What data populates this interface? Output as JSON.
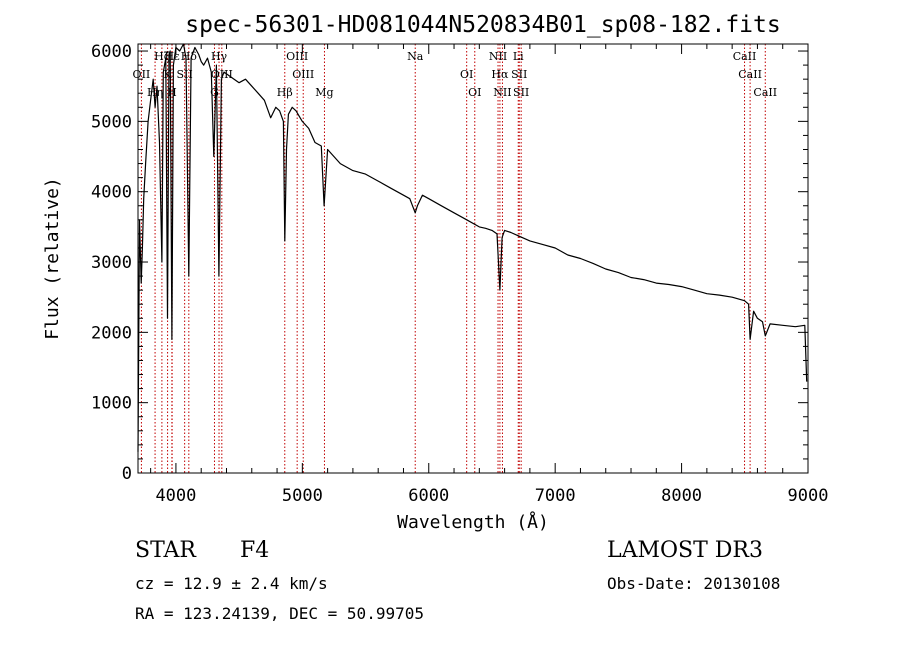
{
  "chart_data": {
    "type": "line",
    "title": "spec-56301-HD081044N520834B01_sp08-182.fits",
    "xlabel": "Wavelength (Å)",
    "ylabel": "Flux (relative)",
    "xlim": [
      3700,
      9000
    ],
    "ylim": [
      0,
      6100
    ],
    "x_ticks": [
      4000,
      5000,
      6000,
      7000,
      8000,
      9000
    ],
    "x_tick_labels": [
      "4000",
      "5000",
      "6000",
      "7000",
      "8000",
      "9000"
    ],
    "y_ticks": [
      0,
      1000,
      2000,
      3000,
      4000,
      5000,
      6000
    ],
    "y_tick_labels": [
      "0",
      "1000",
      "2000",
      "3000",
      "4000",
      "5000",
      "6000"
    ],
    "series": [
      {
        "name": "spectrum",
        "x": [
          3700,
          3712,
          3725,
          3735,
          3745,
          3760,
          3780,
          3800,
          3820,
          3835,
          3850,
          3870,
          3889,
          3900,
          3920,
          3933,
          3945,
          3955,
          3968,
          3980,
          4000,
          4030,
          4060,
          4080,
          4102,
          4120,
          4150,
          4180,
          4200,
          4220,
          4250,
          4280,
          4300,
          4320,
          4340,
          4360,
          4380,
          4420,
          4460,
          4500,
          4550,
          4600,
          4650,
          4700,
          4750,
          4790,
          4820,
          4850,
          4861,
          4875,
          4890,
          4920,
          4950,
          5000,
          5050,
          5100,
          5150,
          5172,
          5200,
          5250,
          5300,
          5400,
          5500,
          5600,
          5700,
          5800,
          5850,
          5893,
          5910,
          5950,
          6000,
          6100,
          6200,
          6300,
          6400,
          6450,
          6500,
          6540,
          6563,
          6580,
          6600,
          6650,
          6700,
          6800,
          6900,
          7000,
          7100,
          7200,
          7300,
          7400,
          7500,
          7600,
          7700,
          7800,
          7900,
          8000,
          8100,
          8200,
          8300,
          8400,
          8498,
          8530,
          8542,
          8570,
          8600,
          8640,
          8662,
          8700,
          8800,
          8900,
          8975,
          8990
        ],
        "y": [
          300,
          3600,
          2700,
          3200,
          3900,
          4400,
          5000,
          5300,
          5600,
          5200,
          5500,
          4700,
          3000,
          5700,
          5900,
          2200,
          5950,
          6000,
          1900,
          5800,
          6050,
          6000,
          6100,
          5900,
          2800,
          5900,
          6050,
          5950,
          5850,
          5800,
          5900,
          5700,
          4500,
          5800,
          2800,
          5600,
          5700,
          5650,
          5600,
          5550,
          5600,
          5500,
          5400,
          5300,
          5050,
          5200,
          5150,
          5000,
          3300,
          4600,
          5100,
          5200,
          5150,
          5000,
          4900,
          4700,
          4650,
          3800,
          4600,
          4500,
          4400,
          4300,
          4250,
          4150,
          4050,
          3950,
          3900,
          3700,
          3800,
          3950,
          3900,
          3800,
          3700,
          3600,
          3500,
          3480,
          3450,
          3400,
          2600,
          3350,
          3450,
          3420,
          3380,
          3300,
          3250,
          3200,
          3100,
          3050,
          2980,
          2900,
          2850,
          2780,
          2750,
          2700,
          2680,
          2650,
          2600,
          2550,
          2530,
          2500,
          2450,
          2400,
          1900,
          2300,
          2200,
          2150,
          1950,
          2120,
          2100,
          2080,
          2100,
          1300
        ]
      }
    ],
    "lines": [
      {
        "name": "H-delta",
        "label": "Hδ",
        "x": 4102
      },
      {
        "name": "Oii-3727",
        "label": "OII",
        "x": 3727
      },
      {
        "name": "H-eta",
        "label": "Hη",
        "x": 3835
      },
      {
        "name": "H-zeta",
        "label": "Hζ",
        "x": 3889
      },
      {
        "name": "CaII-K",
        "label": "K",
        "x": 3934
      },
      {
        "name": "CaII-H",
        "label": "H",
        "x": 3968
      },
      {
        "name": "H-epsilon",
        "label": "Hε",
        "x": 3970
      },
      {
        "name": "SII-4069",
        "label": "SII",
        "x": 4069
      },
      {
        "name": "G-band",
        "label": "G",
        "x": 4305
      },
      {
        "name": "H-gamma",
        "label": "Hγ",
        "x": 4341
      },
      {
        "name": "OIII-4363",
        "label": "OIII",
        "x": 4363
      },
      {
        "name": "H-beta",
        "label": "Hβ",
        "x": 4861
      },
      {
        "name": "OIII-4959",
        "label": "OIII",
        "x": 4959
      },
      {
        "name": "OIII-5007",
        "label": "OIII",
        "x": 5007
      },
      {
        "name": "Mg",
        "label": "Mg",
        "x": 5175
      },
      {
        "name": "Na",
        "label": "Na",
        "x": 5893
      },
      {
        "name": "OI-6300",
        "label": "OI",
        "x": 6300
      },
      {
        "name": "OI-6364",
        "label": "OI",
        "x": 6364
      },
      {
        "name": "NII-6548",
        "label": "NII",
        "x": 6548
      },
      {
        "name": "H-alpha",
        "label": "Hα",
        "x": 6563
      },
      {
        "name": "NII-6583",
        "label": "NII",
        "x": 6583
      },
      {
        "name": "Li",
        "label": "Li",
        "x": 6708
      },
      {
        "name": "SII-6716",
        "label": "SII",
        "x": 6716
      },
      {
        "name": "SII-6731",
        "label": "SII",
        "x": 6731
      },
      {
        "name": "CaII-8498",
        "label": "CaII",
        "x": 8498
      },
      {
        "name": "CaII-8542",
        "label": "CaII",
        "x": 8542
      },
      {
        "name": "CaII-8662",
        "label": "CaII",
        "x": 8662
      }
    ]
  },
  "info": {
    "object_class": "STAR",
    "subclass": "F4",
    "survey": "LAMOST DR3",
    "redshift": "cz = 12.9 ± 2.4 km/s",
    "obs_date": "Obs-Date: 20130108",
    "coords": "RA = 123.24139, DEC =  50.99705"
  },
  "colors": {
    "spectrum": "#000000",
    "marker_lines": "#c00000"
  }
}
